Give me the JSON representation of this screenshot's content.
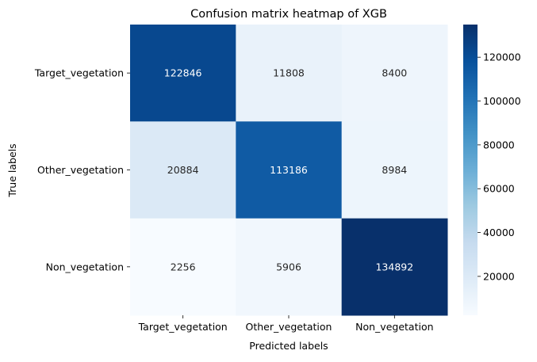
{
  "chart_data": {
    "type": "heatmap",
    "title": "Confusion matrix heatmap of XGB",
    "xlabel": "Predicted labels",
    "ylabel": "True labels",
    "x_categories": [
      "Target_vegetation",
      "Other_vegetation",
      "Non_vegetation"
    ],
    "y_categories": [
      "Target_vegetation",
      "Other_vegetation",
      "Non_vegetation"
    ],
    "values": [
      [
        122846,
        11808,
        8400
      ],
      [
        20884,
        113186,
        8984
      ],
      [
        2256,
        5906,
        134892
      ]
    ],
    "colormap": "Blues",
    "colorbar": {
      "min": 2256,
      "max": 134892,
      "ticks": [
        20000,
        40000,
        60000,
        80000,
        100000,
        120000
      ]
    },
    "annotations": true,
    "grid": false
  }
}
